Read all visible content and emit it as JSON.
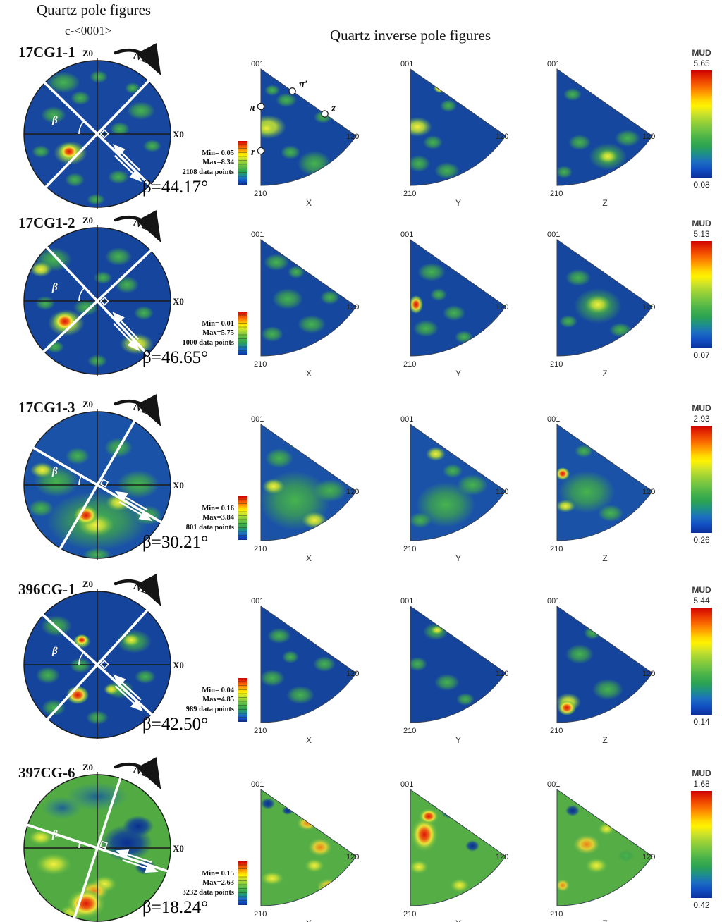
{
  "header": {
    "pf_title": "Quartz pole figures",
    "pf_subtitle": "c-<0001>",
    "ipf_title": "Quartz inverse pole figures"
  },
  "common": {
    "z_axis": "Z0",
    "x_axis": "X0",
    "ne": "NE",
    "beta_symbol": "β",
    "mud": "MUD",
    "ipf_top": "001",
    "ipf_bottom": "210",
    "ipf_right": "120",
    "ipf_axes": [
      "X",
      "Y",
      "Z"
    ],
    "markers": {
      "pi": "π",
      "pi_prime": "π′",
      "z": "z",
      "r": "r"
    }
  },
  "rows": [
    {
      "sample": "17CG1-1",
      "min": "Min= 0.05",
      "max": "Max=8.34",
      "points": "2108 data points",
      "beta": "β=44.17°",
      "mud_max": "5.65",
      "mud_min": "0.08"
    },
    {
      "sample": "17CG1-2",
      "min": "Min= 0.01",
      "max": "Max=5.75",
      "points": "1000 data points",
      "beta": "β=46.65°",
      "mud_max": "5.13",
      "mud_min": "0.07"
    },
    {
      "sample": "17CG1-3",
      "min": "Min= 0.16",
      "max": "Max=3.84",
      "points": "801 data points",
      "beta": "β=30.21°",
      "mud_max": "2.93",
      "mud_min": "0.26"
    },
    {
      "sample": "396CG-1",
      "min": "Min= 0.04",
      "max": "Max=4.85",
      "points": "989 data points",
      "beta": "β=42.50°",
      "mud_max": "5.44",
      "mud_min": "0.14"
    },
    {
      "sample": "397CG-6",
      "min": "Min= 0.15",
      "max": "Max=2.63",
      "points": "3232 data points",
      "beta": "β=18.24°",
      "mud_max": "1.68",
      "mud_min": "0.42"
    }
  ],
  "chart_data": {
    "type": "heatmap",
    "title": "Quartz pole figures (c-<0001>) and quartz inverse pole figures",
    "colormap": "rainbow: blue = low MUD, green/yellow = mid, red = high",
    "pole_figure_axes": [
      "Z0",
      "X0"
    ],
    "pole_figure_annotations": [
      "NE shear arrow",
      "β angle between foliation trace and X0",
      "dextral shear-band arrows"
    ],
    "inverse_pole_figure_directions": [
      "X",
      "Y",
      "Z"
    ],
    "inverse_pole_figure_corners": [
      "001",
      "210",
      "120"
    ],
    "crystal_direction_markers": [
      "π",
      "π′",
      "z",
      "r"
    ],
    "samples": [
      {
        "sample": "17CG1-1",
        "beta_deg": 44.17,
        "min": 0.05,
        "max": 8.34,
        "data_points": 2108,
        "mud_max": 5.65,
        "mud_min": 0.08
      },
      {
        "sample": "17CG1-2",
        "beta_deg": 46.65,
        "min": 0.01,
        "max": 5.75,
        "data_points": 1000,
        "mud_max": 5.13,
        "mud_min": 0.07
      },
      {
        "sample": "17CG1-3",
        "beta_deg": 30.21,
        "min": 0.16,
        "max": 3.84,
        "data_points": 801,
        "mud_max": 2.93,
        "mud_min": 0.26
      },
      {
        "sample": "396CG-1",
        "beta_deg": 42.5,
        "min": 0.04,
        "max": 4.85,
        "data_points": 989,
        "mud_max": 5.44,
        "mud_min": 0.14
      },
      {
        "sample": "397CG-6",
        "beta_deg": 18.24,
        "min": 0.15,
        "max": 2.63,
        "data_points": 3232,
        "mud_max": 1.68,
        "mud_min": 0.42
      }
    ]
  }
}
